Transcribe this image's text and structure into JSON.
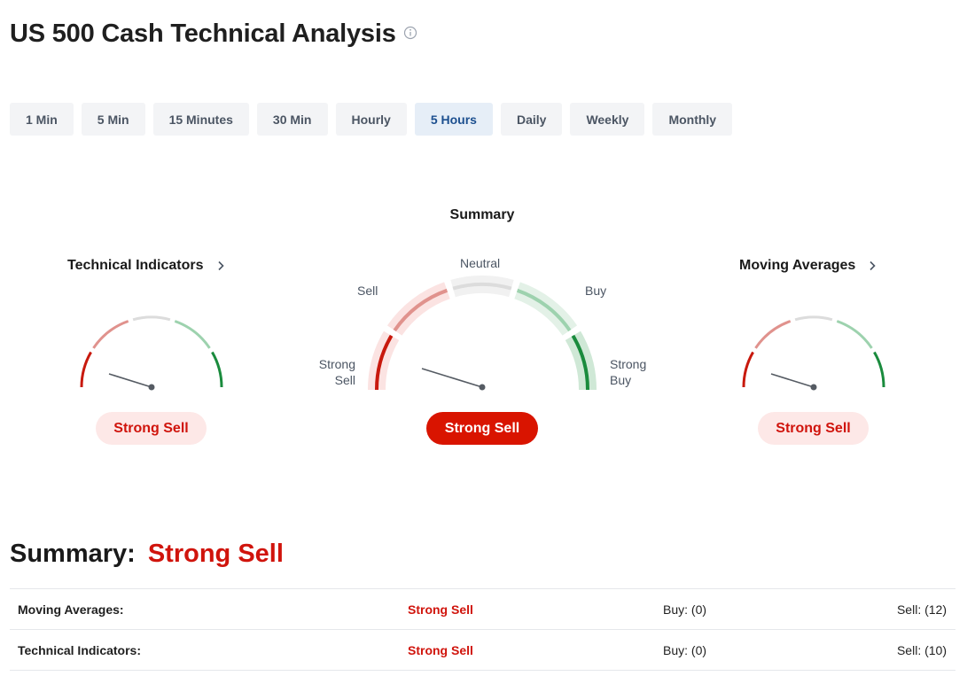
{
  "page": {
    "title": "US 500 Cash Technical Analysis",
    "info_icon": "info-circle-icon"
  },
  "tabs": [
    {
      "label": "1 Min",
      "active": false
    },
    {
      "label": "5 Min",
      "active": false
    },
    {
      "label": "15 Minutes",
      "active": false
    },
    {
      "label": "30 Min",
      "active": false
    },
    {
      "label": "Hourly",
      "active": false
    },
    {
      "label": "5 Hours",
      "active": true
    },
    {
      "label": "Daily",
      "active": false
    },
    {
      "label": "Weekly",
      "active": false
    },
    {
      "label": "Monthly",
      "active": false
    }
  ],
  "gauges": {
    "summary_title": "Summary",
    "technical": {
      "title": "Technical Indicators",
      "result": "Strong Sell",
      "icon": "chevron-right-icon"
    },
    "summary": {
      "result": "Strong Sell",
      "labels": {
        "strong_sell_1": "Strong",
        "strong_sell_2": "Sell",
        "sell": "Sell",
        "neutral": "Neutral",
        "buy": "Buy",
        "strong_buy_1": "Strong",
        "strong_buy_2": "Buy"
      }
    },
    "moving": {
      "title": "Moving Averages",
      "result": "Strong Sell",
      "icon": "chevron-right-icon"
    }
  },
  "summary": {
    "label": "Summary:",
    "value": "Strong Sell"
  },
  "table": {
    "rows": [
      {
        "name": "Moving Averages:",
        "signal": "Strong Sell",
        "buy": "Buy: (0)",
        "sell": "Sell: (12)"
      },
      {
        "name": "Technical Indicators:",
        "signal": "Strong Sell",
        "buy": "Buy: (0)",
        "sell": "Sell: (10)"
      }
    ]
  },
  "colors": {
    "strong_sell": "#c8190d",
    "sell": "#e0928d",
    "neutral": "#dcdcdc",
    "buy": "#9dd2ae",
    "strong_buy": "#1a8b3d",
    "accent_red": "#d91400",
    "active_tab_text": "#1c4f8f"
  }
}
